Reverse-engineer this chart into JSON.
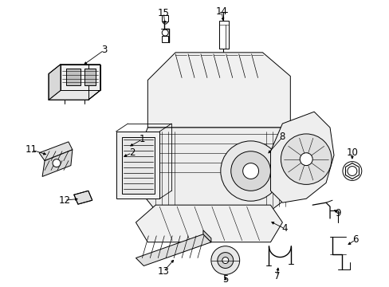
{
  "background_color": "#ffffff",
  "figsize": [
    4.89,
    3.6
  ],
  "dpi": 100,
  "lc": "#000000",
  "lw": 0.7,
  "label_fontsize": 8.5
}
